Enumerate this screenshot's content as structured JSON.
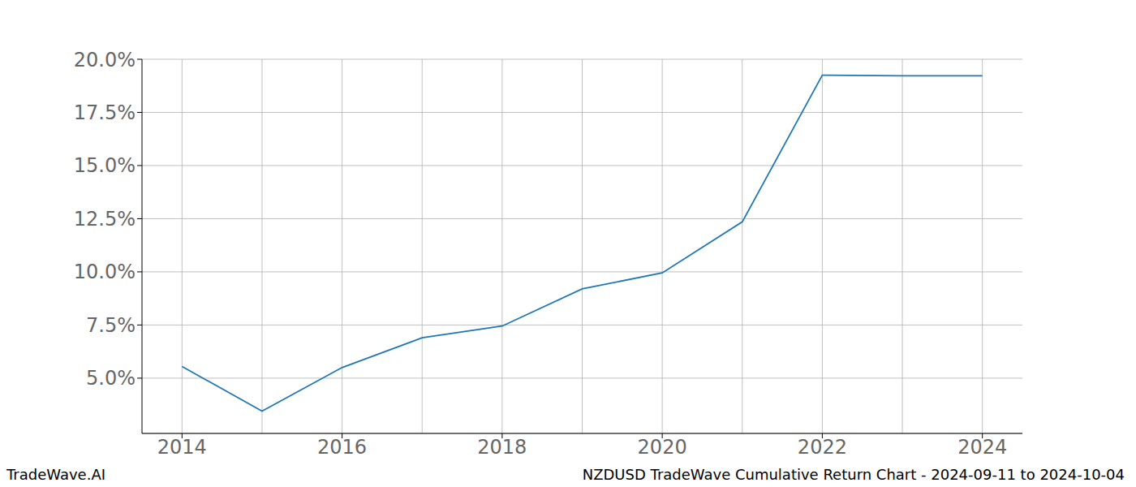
{
  "chart_data": {
    "type": "line",
    "title": "NZDUSD TradeWave Cumulative Return Chart - 2024-09-11 to 2024-10-04",
    "source": "TradeWave.AI",
    "x": [
      2014,
      2015,
      2016,
      2017,
      2018,
      2019,
      2020,
      2021,
      2022,
      2023,
      2024
    ],
    "values": [
      5.55,
      3.45,
      5.5,
      6.9,
      7.45,
      9.2,
      9.95,
      12.35,
      19.25,
      19.22,
      19.22
    ],
    "color": "#1f77b4",
    "xlim": [
      2013.5,
      2024.5
    ],
    "xticks": [
      2014,
      2016,
      2018,
      2020,
      2022,
      2024
    ],
    "ylim": [
      2.4,
      20.0
    ],
    "yticks": [
      {
        "value": 5,
        "label": "5.0%"
      },
      {
        "value": 7.5,
        "label": "7.5%"
      },
      {
        "value": 10,
        "label": "10.0%"
      },
      {
        "value": 12.5,
        "label": "12.5%"
      },
      {
        "value": 15,
        "label": "15.0%"
      },
      {
        "value": 17.5,
        "label": "17.5%"
      },
      {
        "value": 20,
        "label": "20.0%"
      }
    ],
    "grid": true
  }
}
